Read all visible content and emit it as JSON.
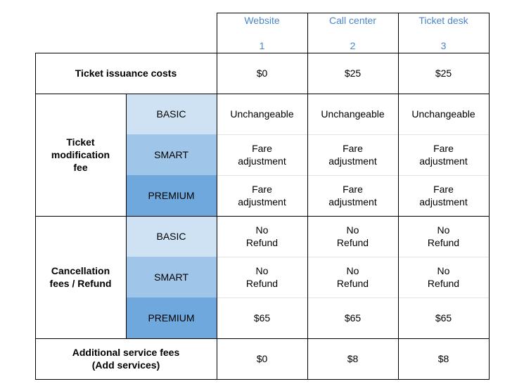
{
  "header": {
    "columns": [
      {
        "name": "Website",
        "number": "1"
      },
      {
        "name": "Call center",
        "number": "2"
      },
      {
        "name": "Ticket desk",
        "number": "3"
      }
    ]
  },
  "rows": {
    "issuance": {
      "label": "Ticket issuance costs",
      "values": [
        "$0",
        "$25",
        "$25"
      ]
    },
    "modification": {
      "label": "Ticket\nmodification\nfee",
      "tiers": [
        {
          "tier": "BASIC",
          "values": [
            "Unchangeable",
            "Unchangeable",
            "Unchangeable"
          ]
        },
        {
          "tier": "SMART",
          "values": [
            "Fare\nadjustment",
            "Fare\nadjustment",
            "Fare\nadjustment"
          ]
        },
        {
          "tier": "PREMIUM",
          "values": [
            "Fare\nadjustment",
            "Fare\nadjustment",
            "Fare\nadjustment"
          ]
        }
      ]
    },
    "cancellation": {
      "label": "Cancellation\nfees / Refund",
      "tiers": [
        {
          "tier": "BASIC",
          "values": [
            "No\nRefund",
            "No\nRefund",
            "No\nRefund"
          ]
        },
        {
          "tier": "SMART",
          "values": [
            "No\nRefund",
            "No\nRefund",
            "No\nRefund"
          ]
        },
        {
          "tier": "PREMIUM",
          "values": [
            "$65",
            "$65",
            "$65"
          ]
        }
      ]
    },
    "additional": {
      "label": "Additional service fees\n(Add services)",
      "values": [
        "$0",
        "$8",
        "$8"
      ]
    }
  },
  "colors": {
    "header_text": "#4a86c8",
    "tier_basic": "#cfe2f3",
    "tier_smart": "#9fc5e8",
    "tier_premium": "#6fa8dc"
  }
}
